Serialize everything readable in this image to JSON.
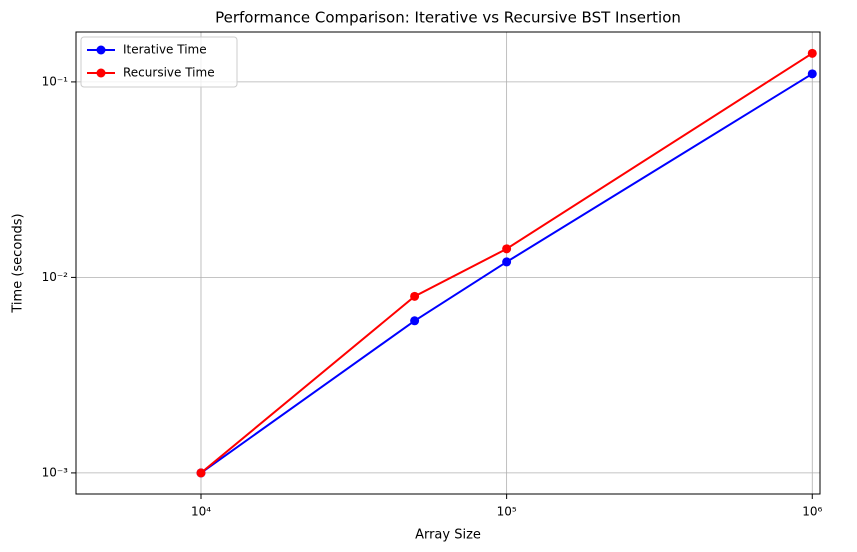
{
  "chart_data": {
    "type": "line",
    "title": "Performance Comparison: Iterative vs Recursive BST Insertion",
    "x_label": "Array Size",
    "y_label": "Time (seconds)",
    "x": [
      10000,
      50000,
      100000,
      1000000
    ],
    "series": [
      {
        "name": "Iterative Time",
        "color": "#0000ff",
        "values": [
          0.001,
          0.006,
          0.012,
          0.11
        ]
      },
      {
        "name": "Recursive Time",
        "color": "#ff0000",
        "values": [
          0.001,
          0.008,
          0.014,
          0.14
        ]
      }
    ],
    "xscale": "log",
    "yscale": "log",
    "xlim": [
      3900,
      1060000
    ],
    "ylim": [
      0.00078,
      0.18
    ],
    "xticks": [
      {
        "value": 10000,
        "label": "10⁴"
      },
      {
        "value": 100000,
        "label": "10⁵"
      },
      {
        "value": 1000000,
        "label": "10⁶"
      }
    ],
    "yticks": [
      {
        "value": 0.001,
        "label": "10⁻³"
      },
      {
        "value": 0.01,
        "label": "10⁻²"
      },
      {
        "value": 0.1,
        "label": "10⁻¹"
      }
    ],
    "grid": true,
    "legend": "upper left"
  }
}
